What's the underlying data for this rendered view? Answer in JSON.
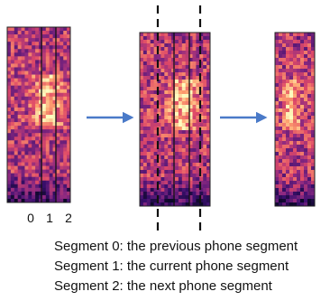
{
  "segment_axis_labels": [
    "0",
    "1",
    "2"
  ],
  "legend": {
    "lines": [
      "Segment 0: the previous phone segment",
      "Segment 1: the current phone segment",
      "Segment 2: the next phone segment"
    ]
  },
  "colors": {
    "arrow": "#4a7ac8",
    "divider": "#111111",
    "dashed": "#111111",
    "spectrogram_palette": [
      "#0d0829",
      "#3b0f6f",
      "#8c2981",
      "#de4968",
      "#fe9f6d",
      "#fcfdbf"
    ]
  }
}
